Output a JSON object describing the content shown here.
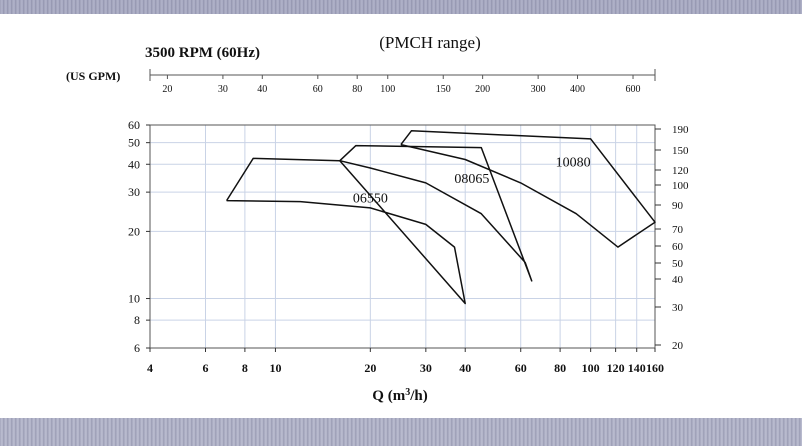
{
  "chart_data": {
    "type": "line",
    "title": "(PMCH range)",
    "subtitle": "3500 RPM (60Hz)",
    "xlabel_prefix": "Q (m",
    "xlabel_sup": "3",
    "xlabel_suffix": "/h)",
    "top_axis_label": "(US GPM)",
    "x_scale": "log",
    "y_scale": "log",
    "xlim": [
      4,
      160
    ],
    "ylim": [
      6,
      60
    ],
    "grid": true,
    "x_ticks": [
      4,
      6,
      8,
      10,
      20,
      30,
      40,
      60,
      80,
      100,
      120,
      140,
      160
    ],
    "y_ticks": [
      6,
      8,
      10,
      20,
      30,
      40,
      50,
      60
    ],
    "top_ticks": [
      20,
      30,
      40,
      60,
      80,
      100,
      150,
      200,
      300,
      400,
      600
    ],
    "right_ticks": [
      190,
      150,
      120,
      100,
      90,
      70,
      60,
      50,
      40,
      30,
      20
    ],
    "series": [
      {
        "name": "06550",
        "label_at": [
          20,
          27
        ],
        "outline": [
          [
            7,
            27.5
          ],
          [
            8.5,
            42.5
          ],
          [
            16,
            41.5
          ],
          [
            40,
            9.5
          ],
          [
            37,
            17
          ],
          [
            30,
            21.5
          ],
          [
            20,
            25.5
          ],
          [
            12,
            27.2
          ],
          [
            7,
            27.5
          ]
        ]
      },
      {
        "name": "08065",
        "label_at": [
          42,
          33
        ],
        "outline": [
          [
            16,
            41.5
          ],
          [
            18,
            48.5
          ],
          [
            45,
            47.5
          ],
          [
            65,
            12
          ],
          [
            62,
            14.5
          ],
          [
            45,
            24
          ],
          [
            30,
            33
          ],
          [
            20,
            38.5
          ],
          [
            16,
            41.5
          ]
        ]
      },
      {
        "name": "10080",
        "label_at": [
          88,
          39
        ],
        "outline": [
          [
            25,
            49
          ],
          [
            27,
            56.5
          ],
          [
            100,
            52
          ],
          [
            160,
            22
          ],
          [
            122,
            17
          ],
          [
            90,
            24
          ],
          [
            60,
            33
          ],
          [
            40,
            42
          ],
          [
            25,
            49
          ]
        ]
      }
    ]
  }
}
